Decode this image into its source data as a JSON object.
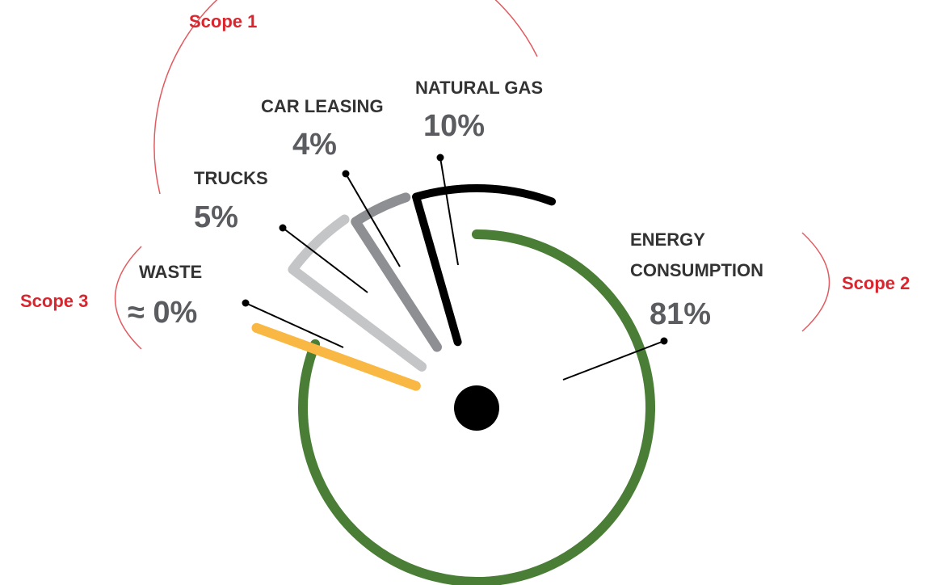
{
  "chart_data": {
    "type": "radial",
    "categories": [
      "ENERGY CONSUMPTION",
      "NATURAL GAS",
      "CAR LEASING",
      "TRUCKS",
      "WASTE"
    ],
    "values": [
      81,
      10,
      4,
      5,
      0
    ],
    "value_labels": [
      "81%",
      "10%",
      "4%",
      "5%",
      "≈ 0%"
    ],
    "colors": [
      "#4a7d35",
      "#000000",
      "#8e8f93",
      "#c4c5c7",
      "#f8b843"
    ],
    "scopes": [
      "Scope 1",
      "Scope 2",
      "Scope 3"
    ]
  }
}
